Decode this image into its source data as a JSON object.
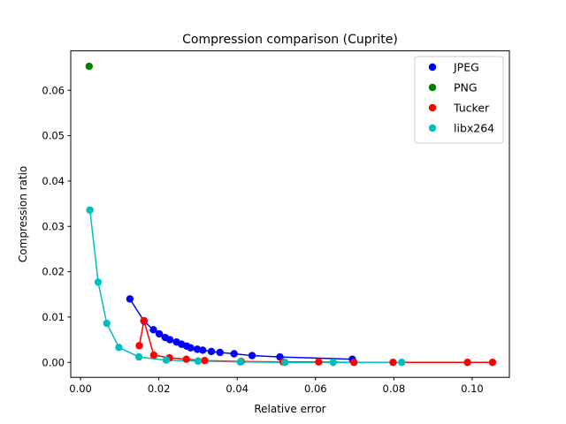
{
  "chart_data": {
    "type": "scatter",
    "title": "Compression comparison (Cuprite)",
    "xlabel": "Relative error",
    "ylabel": "Compression ratio",
    "xlim": [
      -0.0025,
      0.1095
    ],
    "ylim": [
      -0.0033,
      0.0687
    ],
    "xticks": [
      0.0,
      0.02,
      0.04,
      0.06,
      0.08,
      0.1
    ],
    "xtick_labels": [
      "0.00",
      "0.02",
      "0.04",
      "0.06",
      "0.08",
      "0.10"
    ],
    "yticks": [
      0.0,
      0.01,
      0.02,
      0.03,
      0.04,
      0.05,
      0.06
    ],
    "ytick_labels": [
      "0.00",
      "0.01",
      "0.02",
      "0.03",
      "0.04",
      "0.05",
      "0.06"
    ],
    "grid": false,
    "legend_position": "top-right",
    "series": [
      {
        "name": "JPEG",
        "color": "#0000ff",
        "connected": true,
        "x": [
          0.0126,
          0.0162,
          0.0186,
          0.0201,
          0.0216,
          0.0228,
          0.0245,
          0.0258,
          0.0271,
          0.0281,
          0.0298,
          0.0312,
          0.0334,
          0.0356,
          0.0392,
          0.0438,
          0.0509,
          0.0694
        ],
        "y": [
          0.014,
          0.0091,
          0.0072,
          0.0063,
          0.0055,
          0.005,
          0.0045,
          0.004,
          0.0036,
          0.0032,
          0.0029,
          0.0027,
          0.0024,
          0.0022,
          0.0019,
          0.0015,
          0.0012,
          0.0007
        ]
      },
      {
        "name": "PNG",
        "color": "#008000",
        "connected": false,
        "x": [
          0.0022
        ],
        "y": [
          0.0653
        ]
      },
      {
        "name": "Tucker",
        "color": "#ff0000",
        "connected": true,
        "x": [
          0.015,
          0.0162,
          0.0187,
          0.0227,
          0.027,
          0.0317,
          0.041,
          0.0517,
          0.0608,
          0.0698,
          0.0798,
          0.0988,
          0.1052
        ],
        "y": [
          0.0037,
          0.0092,
          0.0016,
          0.001,
          0.0007,
          0.0004,
          0.0002,
          0.0001,
          0.0001,
          0.0,
          0.0,
          0.0,
          0.0
        ]
      },
      {
        "name": "libx264",
        "color": "#00bfbf",
        "connected": true,
        "x": [
          0.0024,
          0.0045,
          0.0067,
          0.0098,
          0.0149,
          0.0219,
          0.03,
          0.0408,
          0.0522,
          0.0645,
          0.082
        ],
        "y": [
          0.0336,
          0.0177,
          0.0086,
          0.0033,
          0.0012,
          0.0005,
          0.0003,
          0.0001,
          0.0,
          0.0,
          0.0
        ]
      }
    ]
  }
}
